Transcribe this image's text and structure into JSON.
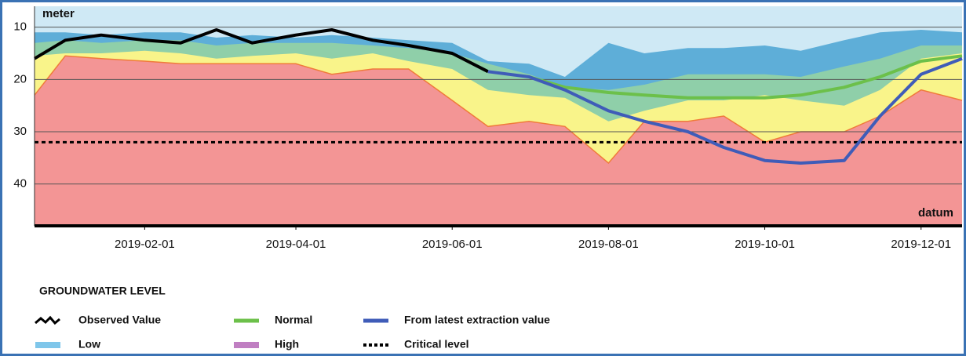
{
  "chart_data": {
    "type": "area",
    "y_label": "meter",
    "baseline_label": "datum",
    "y_inverted": true,
    "ylim": [
      6,
      48
    ],
    "yticks": [
      10,
      20,
      30,
      40
    ],
    "grid": true,
    "xlim": [
      "2018-12-20",
      "2019-12-17"
    ],
    "xticks": [
      "2019-02-01",
      "2019-04-01",
      "2019-06-01",
      "2019-08-01",
      "2019-10-01",
      "2019-12-01"
    ],
    "background_color": "#cfe9f5",
    "x": [
      "2018-12-20",
      "2019-01-01",
      "2019-01-15",
      "2019-02-01",
      "2019-02-15",
      "2019-03-01",
      "2019-03-15",
      "2019-04-01",
      "2019-04-15",
      "2019-05-01",
      "2019-05-15",
      "2019-06-01",
      "2019-06-15",
      "2019-07-01",
      "2019-07-15",
      "2019-08-01",
      "2019-08-15",
      "2019-09-01",
      "2019-09-15",
      "2019-10-01",
      "2019-10-15",
      "2019-11-01",
      "2019-11-15",
      "2019-12-01",
      "2019-12-17"
    ],
    "bands": [
      {
        "color": "#5eaed8",
        "values": [
          11,
          11,
          11.5,
          11,
          11,
          12,
          11.5,
          12,
          11.5,
          12,
          12.5,
          13,
          16.5,
          17,
          19.5,
          13,
          15,
          14,
          14,
          13.5,
          14.5,
          12.5,
          11,
          10.5,
          11
        ]
      },
      {
        "color": "#8fcfa9",
        "values": [
          13,
          12.5,
          13,
          12.5,
          12.5,
          13.5,
          13,
          13,
          13,
          13.5,
          14,
          15,
          17,
          19,
          21.5,
          22,
          21,
          19,
          19,
          19,
          19.5,
          17.5,
          16,
          13.5,
          13.5
        ]
      },
      {
        "color": "#f9f48a",
        "values": [
          15.5,
          15,
          15,
          14.5,
          15,
          16,
          15.5,
          15,
          16,
          15,
          16.5,
          18,
          22,
          23,
          23.5,
          28,
          26,
          24,
          24,
          23,
          24,
          25,
          22,
          16,
          15
        ]
      },
      {
        "color": "#f39595",
        "stroke": "#f07a3a",
        "values": [
          23,
          15.5,
          16,
          16.5,
          17,
          17,
          17,
          17,
          19,
          18,
          18,
          24,
          29,
          28,
          29,
          36,
          28,
          28,
          27,
          32,
          30,
          30,
          27,
          22,
          24
        ]
      }
    ],
    "series": [
      {
        "name": "Observed Value",
        "color": "#000000",
        "values": [
          16,
          12.5,
          11.5,
          12.5,
          13,
          10.5,
          13,
          11.5,
          10.5,
          12.5,
          13.5,
          15,
          18.5,
          null,
          null,
          null,
          null,
          null,
          null,
          null,
          null,
          null,
          null,
          null,
          null
        ]
      },
      {
        "name": "Normal",
        "color": "#6cc04a",
        "values": [
          null,
          null,
          null,
          null,
          null,
          null,
          null,
          null,
          null,
          null,
          null,
          null,
          null,
          19.5,
          21.5,
          22.5,
          23,
          23.5,
          23.5,
          23.5,
          23,
          21.5,
          19.5,
          16.5,
          15.5
        ]
      },
      {
        "name": "From latest extraction value",
        "color": "#3f5cb8",
        "values": [
          null,
          null,
          null,
          null,
          null,
          null,
          null,
          null,
          null,
          null,
          null,
          null,
          18.5,
          19.5,
          22,
          26,
          28,
          30,
          33,
          35.5,
          36,
          35.5,
          27,
          19,
          16
        ]
      }
    ],
    "critical": {
      "name": "Critical level",
      "value": 32,
      "color": "#000000"
    },
    "legend_title": "GROUNDWATER LEVEL",
    "legend_swatches": [
      {
        "name": "Low",
        "color": "#7fc6ea"
      },
      {
        "name": "High",
        "color": "#c07fc2"
      }
    ]
  }
}
